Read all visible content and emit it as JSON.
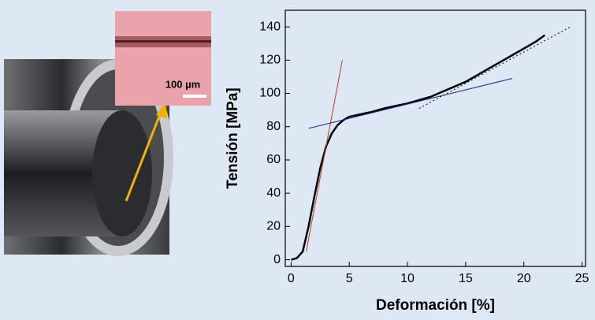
{
  "chart_data": {
    "type": "line",
    "xlabel": "Deformación [%]",
    "ylabel": "Tensión [MPa]",
    "inset_label": "100 µm",
    "xlim": [
      -0.5,
      25.3
    ],
    "ylim": [
      -4,
      150
    ],
    "xticks": [
      0,
      5,
      10,
      15,
      20,
      25
    ],
    "yticks": [
      0,
      20,
      40,
      60,
      80,
      100,
      120,
      140
    ],
    "series": [
      {
        "color": "#000000",
        "width": 2.5,
        "dashed": false,
        "x": [
          0,
          0.5,
          1,
          1.5,
          2,
          2.5,
          3,
          3.5,
          4,
          4.5,
          5,
          6,
          7,
          8,
          9,
          10,
          11,
          12,
          13,
          14,
          15,
          16,
          17,
          18,
          19,
          20,
          21,
          21.8
        ],
        "values": [
          0,
          1,
          5,
          20,
          38,
          55,
          68,
          76,
          81,
          84,
          86,
          87.5,
          89,
          91,
          92.5,
          94,
          96,
          98,
          101,
          104,
          107,
          111,
          115,
          119,
          123,
          127,
          131,
          135
        ]
      },
      {
        "color": "#c0392b",
        "width": 1,
        "dashed": false,
        "x": [
          1.3,
          4.4
        ],
        "values": [
          5,
          120
        ]
      },
      {
        "color": "#1f2a8c",
        "width": 1,
        "dashed": false,
        "x": [
          1.5,
          19
        ],
        "values": [
          79,
          109
        ]
      },
      {
        "color": "#000000",
        "width": 1,
        "dashed": true,
        "x": [
          11,
          24
        ],
        "values": [
          91,
          140
        ]
      }
    ]
  }
}
